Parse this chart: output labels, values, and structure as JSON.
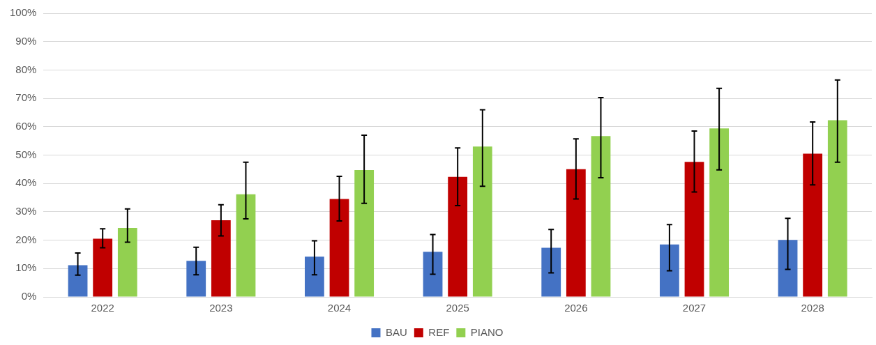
{
  "chart_data": {
    "type": "bar",
    "categories": [
      "2022",
      "2023",
      "2024",
      "2025",
      "2026",
      "2027",
      "2028"
    ],
    "series": [
      {
        "name": "BAU",
        "color": "#4472c4",
        "values": [
          11.2,
          12.7,
          14.2,
          15.9,
          17.3,
          18.5,
          20.1
        ],
        "errors": [
          [
            7.7,
            15.5
          ],
          [
            7.8,
            17.5
          ],
          [
            7.8,
            19.8
          ],
          [
            8,
            22
          ],
          [
            8.5,
            23.8
          ],
          [
            9.2,
            25.5
          ],
          [
            9.7,
            27.7
          ]
        ]
      },
      {
        "name": "REF",
        "color": "#c00000",
        "values": [
          20.5,
          27,
          34.5,
          42.3,
          45,
          47.6,
          50.5
        ],
        "errors": [
          [
            17.3,
            24
          ],
          [
            21.5,
            32.5
          ],
          [
            26.8,
            42.5
          ],
          [
            32.2,
            52.5
          ],
          [
            34.5,
            55.7
          ],
          [
            37,
            58.5
          ],
          [
            39.5,
            61.7
          ]
        ]
      },
      {
        "name": "PIANO",
        "color": "#92d050",
        "values": [
          24.3,
          36.2,
          44.7,
          53,
          56.7,
          59.4,
          62.3
        ],
        "errors": [
          [
            19.3,
            31
          ],
          [
            27.5,
            47.5
          ],
          [
            33,
            57
          ],
          [
            39,
            66
          ],
          [
            42,
            70.3
          ],
          [
            44.8,
            73.5
          ],
          [
            47.5,
            76.5
          ]
        ]
      }
    ],
    "ylim": [
      0,
      100
    ],
    "yticks": [
      {
        "value": 0,
        "label": "0%"
      },
      {
        "value": 10,
        "label": "10%"
      },
      {
        "value": 20,
        "label": "20%"
      },
      {
        "value": 30,
        "label": "30%"
      },
      {
        "value": 40,
        "label": "40%"
      },
      {
        "value": 50,
        "label": "50%"
      },
      {
        "value": 60,
        "label": "60%"
      },
      {
        "value": 70,
        "label": "70%"
      },
      {
        "value": 80,
        "label": "80%"
      },
      {
        "value": 90,
        "label": "90%"
      },
      {
        "value": 100,
        "label": "100%"
      }
    ],
    "grid": "y",
    "legend": "bottom"
  }
}
